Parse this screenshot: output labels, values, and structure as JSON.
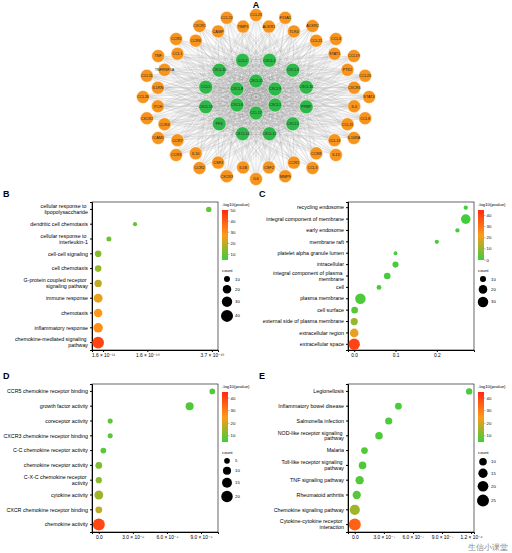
{
  "chart_data": [
    {
      "type": "network",
      "title": "A",
      "series": [
        {
          "color": "#2fb84a",
          "nodes": [
            "CXCL11",
            "CXCL9",
            "CXCL1",
            "CCL17",
            "CXCL6",
            "CXCL8",
            "CXCL2",
            "CXCL3",
            "CXCL16",
            "PPBP",
            "CXCL5",
            "CXCL12",
            "CXCL14",
            "PF4",
            "CXCL13",
            "CCL5",
            "CXCL10",
            "CCL2"
          ]
        },
        {
          "color": "#f7941d",
          "nodes": [
            "CCL23",
            "ACKR1",
            "F13A1",
            "TLR4",
            "ACKR2",
            "CCL21",
            "CCL4",
            "STAT1",
            "CCL19",
            "PTK2",
            "CCL20",
            "CXCR6",
            "STAT4",
            "IL4",
            "CCL8",
            "CCL25",
            "IL10RA",
            "CCL13",
            "IL13",
            "CCR8",
            "CCL3",
            "CCR1",
            "MMP9",
            "CSF2",
            "IL6",
            "IL1B",
            "CXCR3",
            "CSF3",
            "CCR2",
            "IL10",
            "CCR3",
            "CCR7",
            "ICAM1",
            "CCR4",
            "CXCR2",
            "ITCH",
            "CCL26",
            "IL1RN",
            "CCL11",
            "TNFRSF1A",
            "TNF",
            "CCL1",
            "CCR5",
            "CCR6",
            "CXCR1",
            "CAMP",
            "CCL22",
            "TIMP1"
          ]
        }
      ]
    },
    {
      "type": "bubble",
      "title": "B",
      "categories": [
        "cellular response to lipopolysaccharide",
        "dendritic cell chemotaxis",
        "cellular response to interleukin-1",
        "cell-cell signaling",
        "cell chemotaxis",
        "G-protein coupled receptor signaling pathway",
        "immune response",
        "chemotaxis",
        "inflammatory response",
        "chemokine-mediated signaling pathway"
      ],
      "values": [
        3.6e-10,
        1.2e-10,
        3.5e-11,
        2e-14,
        1e-15,
        1e-20,
        1e-25,
        1e-28,
        1e-30,
        1e-45
      ],
      "count": [
        8,
        5,
        7,
        12,
        12,
        15,
        22,
        20,
        25,
        38
      ],
      "color_values": [
        9.4,
        9.9,
        10.5,
        13.7,
        15,
        20,
        25,
        28,
        30,
        45
      ],
      "xlim": [
        -2e-11,
        3.9e-10
      ],
      "xticks": [
        {
          "value": 1.6e-11,
          "label": "1.6 × 10⁻¹¹"
        },
        {
          "value": 1.6e-10,
          "label": "1.6 × 10⁻¹⁰"
        },
        {
          "value": 3.7e-10,
          "label": "3.7 × 10⁻¹⁰"
        }
      ],
      "colorbar": {
        "title": "-log10(pvalue)",
        "range": [
          5,
          50
        ],
        "ticks": [
          10,
          20,
          30,
          40,
          50
        ]
      },
      "size_legend": {
        "title": "count",
        "values": [
          10,
          20,
          30,
          40
        ]
      }
    },
    {
      "type": "bubble",
      "title": "C",
      "categories": [
        "recycling endosome",
        "integral component of membrane",
        "early endosome",
        "membrane raft",
        "platelet alpha granule lumen",
        "intracellular",
        "integral component of plasma membrane",
        "cell",
        "plasma membrane",
        "cell surface",
        "external side of plasma membrane",
        "extracellular region",
        "extracellular space"
      ],
      "values": [
        0.27,
        0.27,
        0.25,
        0.2,
        0.1,
        0.1,
        0.08,
        0.06,
        0.015,
        0.001,
        1e-10,
        1e-20,
        1e-40
      ],
      "count": [
        5,
        25,
        5,
        5,
        4,
        10,
        12,
        6,
        30,
        12,
        14,
        20,
        35
      ],
      "color_values": [
        0.6,
        0.6,
        0.6,
        0.7,
        1.0,
        1.0,
        1.1,
        1.2,
        1.8,
        3,
        10,
        20,
        40
      ],
      "xlim": [
        -0.015,
        0.29
      ],
      "xticks": [
        {
          "value": 0,
          "label": "0.0"
        },
        0.1,
        0.2
      ],
      "colorbar": {
        "title": "-log10(pvalue)",
        "range": [
          0,
          45
        ],
        "ticks": [
          0,
          10,
          20,
          30,
          40
        ]
      },
      "size_legend": {
        "title": "count",
        "values": [
          10,
          20,
          30
        ]
      }
    },
    {
      "type": "bubble",
      "title": "D",
      "categories": [
        "CCR5 chemokine receptor binding",
        "growth factor activity",
        "coreceptor activity",
        "CXCR3 chemokine receptor binding",
        "C-C chemokine receptor activity",
        "chemokine receptor activity",
        "C-X-C chemokine receptor activity",
        "cytokine activity",
        "CXCR chemokine receptor binding",
        "chemokine activity"
      ],
      "values": [
        1e-07,
        8e-08,
        1e-08,
        1e-08,
        4e-09,
        1e-12,
        1e-13,
        1e-15,
        1e-18,
        1e-40
      ],
      "count": [
        5,
        10,
        4,
        4,
        5,
        7,
        6,
        12,
        7,
        22
      ],
      "color_values": [
        7.0,
        7.1,
        8,
        8,
        8.4,
        12,
        13,
        15,
        18,
        40
      ],
      "xlim": [
        -6e-09,
        1.05e-07
      ],
      "xticks": [
        {
          "value": 0,
          "label": "0.0"
        },
        {
          "value": 3e-08,
          "label": "3.0 × 10⁻⁸"
        },
        {
          "value": 6e-08,
          "label": "6.0 × 10⁻⁸"
        },
        {
          "value": 9e-08,
          "label": "9.0 × 10⁻⁸"
        }
      ],
      "colorbar": {
        "title": "-log10(pvalue)",
        "range": [
          5,
          45
        ],
        "ticks": [
          10,
          20,
          30,
          40
        ]
      },
      "size_legend": {
        "title": "count",
        "values": [
          5,
          10,
          15,
          20
        ]
      }
    },
    {
      "type": "bubble",
      "title": "E",
      "categories": [
        "Legionellosis",
        "Inflammatory bowel disease",
        "Salmonella infection",
        "NOD-like receptor signaling pathway",
        "Malaria",
        "Toll-like receptor signaling pathway",
        "TNF signaling pathway",
        "Rheumatoid arthritis",
        "Chemokine signaling pathway",
        "Cytokine-cytokine receptor interaction"
      ],
      "values": [
        1.18e-06,
        4.5e-07,
        3.5e-07,
        2.5e-07,
        1e-07,
        8e-08,
        5e-08,
        2e-08,
        1e-15,
        1e-35
      ],
      "count": [
        7,
        8,
        9,
        10,
        8,
        10,
        12,
        12,
        18,
        25
      ],
      "color_values": [
        5.9,
        6.3,
        6.5,
        6.6,
        7,
        7.1,
        7.3,
        7.7,
        15,
        35
      ],
      "xlim": [
        -7e-08,
        1.23e-06
      ],
      "xticks": [
        {
          "value": 0,
          "label": "0.0"
        },
        {
          "value": 3e-07,
          "label": "3.0 × 10⁻⁷"
        },
        {
          "value": 6e-07,
          "label": "6.0 × 10⁻⁷"
        },
        {
          "value": 9e-07,
          "label": "9.0 × 10⁻⁷"
        },
        {
          "value": 1.2e-06,
          "label": "1.2 × 10⁻⁶"
        }
      ],
      "colorbar": {
        "title": "-log10(pvalue)",
        "range": [
          5,
          45
        ],
        "ticks": [
          10,
          20,
          30,
          40
        ]
      },
      "size_legend": {
        "title": "count",
        "values": [
          10,
          15,
          20,
          25
        ]
      },
      "annotation": "生信小课堂"
    }
  ]
}
